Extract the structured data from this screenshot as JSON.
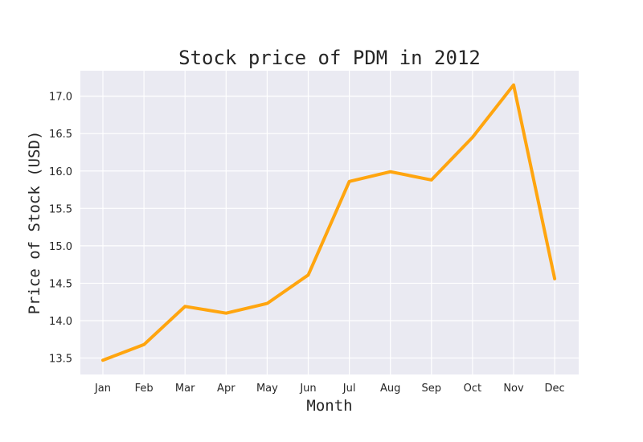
{
  "chart_data": {
    "type": "line",
    "title": "Stock price of PDM in 2012",
    "xlabel": "Month",
    "ylabel": "Price of Stock (USD)",
    "categories": [
      "Jan",
      "Feb",
      "Mar",
      "Apr",
      "May",
      "Jun",
      "Jul",
      "Aug",
      "Sep",
      "Oct",
      "Nov",
      "Dec"
    ],
    "series": [
      {
        "values": [
          13.47,
          13.68,
          14.19,
          14.1,
          14.23,
          14.61,
          15.86,
          15.99,
          15.88,
          16.45,
          17.15,
          14.56
        ]
      }
    ],
    "yticks": [
      "13.5",
      "14.0",
      "14.5",
      "15.0",
      "15.5",
      "16.0",
      "16.5",
      "17.0"
    ],
    "ylim": [
      13.28,
      17.34
    ],
    "grid": true,
    "legend": "none",
    "colors": {
      "line": "#FFA50F",
      "plot_background": "#EAEAF2",
      "grid": "#FFFFFF"
    }
  }
}
